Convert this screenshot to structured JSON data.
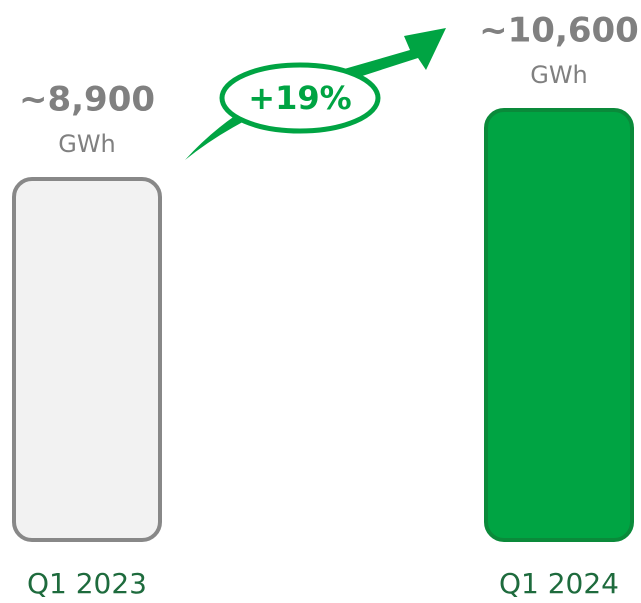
{
  "chart_data": {
    "type": "bar",
    "categories": [
      "Q1 2023",
      "Q1 2024"
    ],
    "values": [
      8900,
      10600
    ],
    "value_labels": [
      "~8,900",
      "~10,600"
    ],
    "unit": "GWh",
    "colors": [
      "#f2f2f2",
      "#00a443"
    ],
    "annotation": "+19%"
  }
}
